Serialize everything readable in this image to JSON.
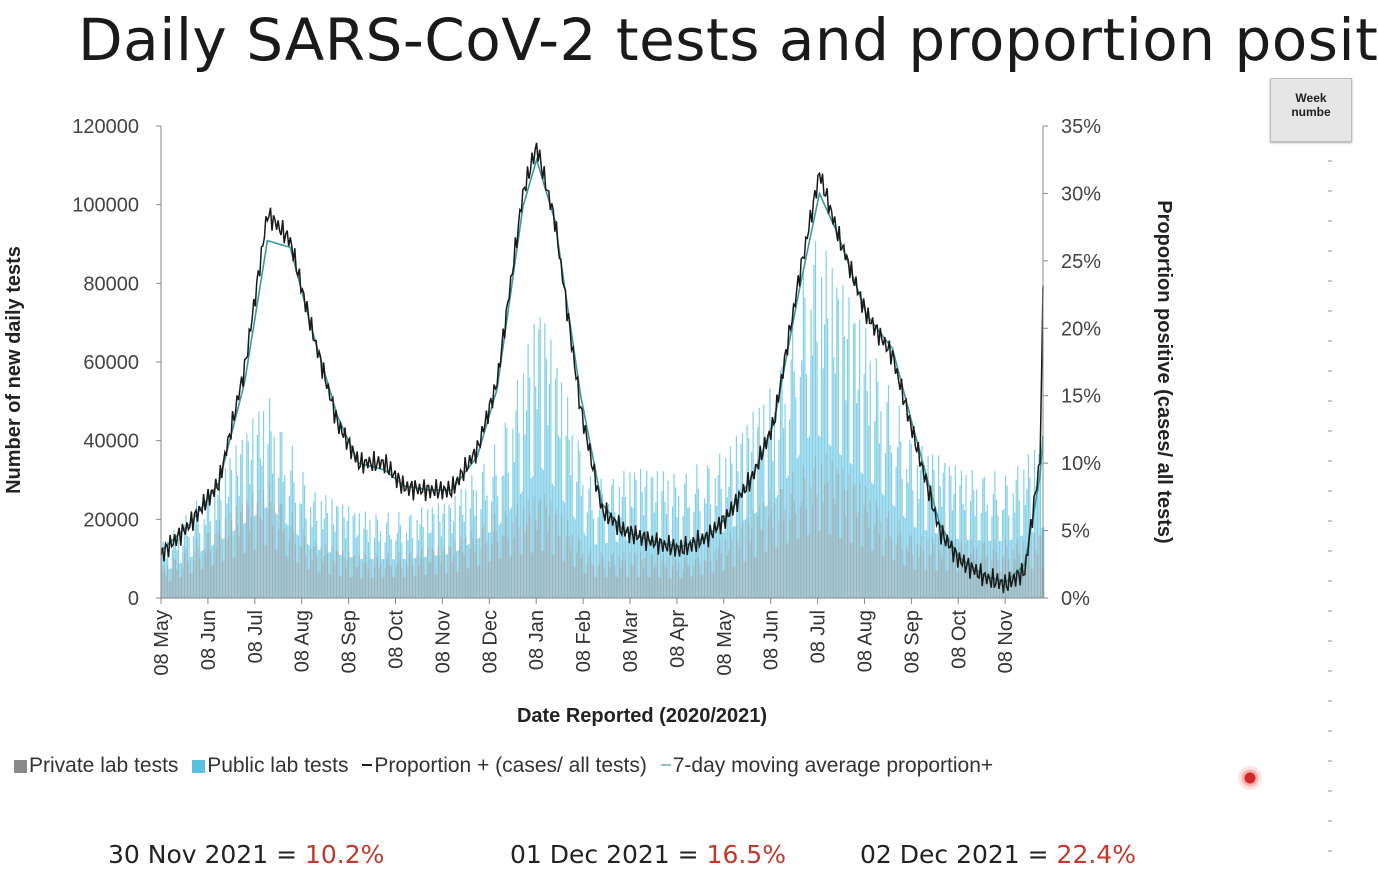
{
  "slide": {
    "title": "Daily SARS-CoV-2 tests and proportion posit",
    "side_table_header": [
      "Week",
      "numbe"
    ]
  },
  "legend": {
    "private": "Private lab tests",
    "public": "Public lab tests",
    "proportion": "Proportion + (cases/ all tests)",
    "moving_avg": "7-day moving average proportion+"
  },
  "footer": [
    {
      "date": "30 Nov 2021 = ",
      "value": "10.2%"
    },
    {
      "date": "01 Dec 2021 = ",
      "value": "16.5%"
    },
    {
      "date": "02 Dec 2021 = ",
      "value": "22.4%"
    }
  ],
  "colors": {
    "private": "#9e9e9e",
    "public": "#5bc0e0",
    "proportion": "#1a1a1a",
    "moving_avg": "#3a9a9a",
    "highlight": "#c0392b"
  },
  "chart_data": {
    "type": "bar",
    "xlabel": "Date Reported (2020/2021)",
    "ylabel": "Number of new daily tests",
    "y2label": "Proportion positive (cases/ all tests)",
    "ylim": [
      0,
      120000
    ],
    "y2lim": [
      0,
      35
    ],
    "y_ticks": [
      "0",
      "20000",
      "40000",
      "60000",
      "80000",
      "100000",
      "120000"
    ],
    "y2_ticks": [
      "0%",
      "5%",
      "10%",
      "15%",
      "20%",
      "25%",
      "30%",
      "35%"
    ],
    "x_ticks": [
      "08 May",
      "08 Jun",
      "08 Jul",
      "08 Aug",
      "08 Sep",
      "08 Oct",
      "08 Nov",
      "08 Dec",
      "08 Jan",
      "08 Feb",
      "08 Mar",
      "08 Apr",
      "08 May",
      "08 Jun",
      "08 Jul",
      "08 Aug",
      "08 Sep",
      "08 Oct",
      "08 Nov"
    ],
    "x_range": [
      "2020-05-01",
      "2021-12-02"
    ],
    "series": [
      {
        "name": "Private lab tests",
        "kind": "bar",
        "points": [
          [
            "2020-05-01",
            8000
          ],
          [
            "2020-06-08",
            20000
          ],
          [
            "2020-07-10",
            30000
          ],
          [
            "2020-08-08",
            15000
          ],
          [
            "2020-09-08",
            11000
          ],
          [
            "2020-10-08",
            12000
          ],
          [
            "2020-11-08",
            14000
          ],
          [
            "2020-12-08",
            22000
          ],
          [
            "2021-01-08",
            27000
          ],
          [
            "2021-02-08",
            12000
          ],
          [
            "2021-03-08",
            12000
          ],
          [
            "2021-04-08",
            11000
          ],
          [
            "2021-05-08",
            16000
          ],
          [
            "2021-06-08",
            28000
          ],
          [
            "2021-07-08",
            38000
          ],
          [
            "2021-08-08",
            28000
          ],
          [
            "2021-09-08",
            16000
          ],
          [
            "2021-10-08",
            15000
          ],
          [
            "2021-11-08",
            15000
          ],
          [
            "2021-12-02",
            17000
          ]
        ]
      },
      {
        "name": "Public lab tests",
        "kind": "bar",
        "points": [
          [
            "2020-05-01",
            14000
          ],
          [
            "2020-06-08",
            32000
          ],
          [
            "2020-07-10",
            52000
          ],
          [
            "2020-08-08",
            28000
          ],
          [
            "2020-09-08",
            22000
          ],
          [
            "2020-10-08",
            22000
          ],
          [
            "2020-11-08",
            25000
          ],
          [
            "2020-12-08",
            40000
          ],
          [
            "2021-01-05",
            75000
          ],
          [
            "2021-02-08",
            30000
          ],
          [
            "2021-03-08",
            33000
          ],
          [
            "2021-04-08",
            32000
          ],
          [
            "2021-05-08",
            38000
          ],
          [
            "2021-06-08",
            55000
          ],
          [
            "2021-07-03",
            95000
          ],
          [
            "2021-08-08",
            68000
          ],
          [
            "2021-09-08",
            40000
          ],
          [
            "2021-10-08",
            33000
          ],
          [
            "2021-11-08",
            32000
          ],
          [
            "2021-12-02",
            40000
          ]
        ]
      },
      {
        "name": "Proportion + (cases/ all tests)",
        "kind": "line",
        "axis": "right",
        "points": [
          [
            "2020-05-01",
            3.2
          ],
          [
            "2020-05-20",
            5.5
          ],
          [
            "2020-06-08",
            8.5
          ],
          [
            "2020-06-25",
            17
          ],
          [
            "2020-07-10",
            28.5
          ],
          [
            "2020-07-25",
            26.5
          ],
          [
            "2020-08-08",
            20
          ],
          [
            "2020-08-25",
            13
          ],
          [
            "2020-09-08",
            10
          ],
          [
            "2020-09-25",
            10
          ],
          [
            "2020-10-08",
            8.2
          ],
          [
            "2020-10-25",
            8
          ],
          [
            "2020-11-08",
            8
          ],
          [
            "2020-11-25",
            11
          ],
          [
            "2020-12-08",
            16
          ],
          [
            "2020-12-25",
            30
          ],
          [
            "2021-01-03",
            33.5
          ],
          [
            "2021-01-15",
            28
          ],
          [
            "2021-02-01",
            14
          ],
          [
            "2021-02-15",
            6.5
          ],
          [
            "2021-03-01",
            5
          ],
          [
            "2021-03-20",
            4.2
          ],
          [
            "2021-04-08",
            3.6
          ],
          [
            "2021-04-25",
            4.5
          ],
          [
            "2021-05-08",
            6
          ],
          [
            "2021-05-25",
            9
          ],
          [
            "2021-06-08",
            13
          ],
          [
            "2021-06-25",
            24
          ],
          [
            "2021-07-08",
            31.5
          ],
          [
            "2021-07-20",
            27
          ],
          [
            "2021-08-08",
            21
          ],
          [
            "2021-08-25",
            18
          ],
          [
            "2021-09-08",
            12
          ],
          [
            "2021-09-25",
            5
          ],
          [
            "2021-10-08",
            2.8
          ],
          [
            "2021-10-25",
            1.5
          ],
          [
            "2021-11-08",
            1
          ],
          [
            "2021-11-20",
            2
          ],
          [
            "2021-11-30",
            10.2
          ],
          [
            "2021-12-01",
            16.5
          ],
          [
            "2021-12-02",
            22.4
          ]
        ]
      },
      {
        "name": "7-day moving average proportion+",
        "kind": "line",
        "axis": "right",
        "points": [
          [
            "2020-05-01",
            3.5
          ],
          [
            "2020-05-20",
            5.5
          ],
          [
            "2020-06-08",
            8.5
          ],
          [
            "2020-06-25",
            16
          ],
          [
            "2020-07-10",
            26.5
          ],
          [
            "2020-07-25",
            26
          ],
          [
            "2020-08-08",
            20
          ],
          [
            "2020-08-25",
            13.5
          ],
          [
            "2020-09-08",
            10
          ],
          [
            "2020-09-25",
            9.5
          ],
          [
            "2020-10-08",
            8.3
          ],
          [
            "2020-10-25",
            8
          ],
          [
            "2020-11-08",
            8
          ],
          [
            "2020-11-25",
            10.5
          ],
          [
            "2020-12-08",
            15.5
          ],
          [
            "2020-12-25",
            29
          ],
          [
            "2021-01-03",
            32.5
          ],
          [
            "2021-01-15",
            28
          ],
          [
            "2021-02-01",
            15
          ],
          [
            "2021-02-15",
            7
          ],
          [
            "2021-03-01",
            5
          ],
          [
            "2021-03-20",
            4.2
          ],
          [
            "2021-04-08",
            3.8
          ],
          [
            "2021-04-25",
            4.5
          ],
          [
            "2021-05-08",
            6
          ],
          [
            "2021-05-25",
            9
          ],
          [
            "2021-06-08",
            13
          ],
          [
            "2021-06-25",
            23
          ],
          [
            "2021-07-08",
            30
          ],
          [
            "2021-07-20",
            27
          ],
          [
            "2021-08-08",
            21
          ],
          [
            "2021-08-25",
            18.5
          ],
          [
            "2021-09-08",
            12.5
          ],
          [
            "2021-09-25",
            5.5
          ],
          [
            "2021-10-08",
            3
          ],
          [
            "2021-10-25",
            1.6
          ],
          [
            "2021-11-08",
            1.2
          ],
          [
            "2021-11-20",
            2.5
          ],
          [
            "2021-11-30",
            9
          ],
          [
            "2021-12-02",
            12
          ]
        ]
      }
    ],
    "legend_position": "bottom",
    "grid": false
  }
}
